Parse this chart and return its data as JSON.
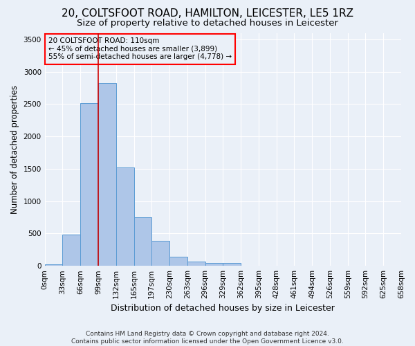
{
  "title": "20, COLTSFOOT ROAD, HAMILTON, LEICESTER, LE5 1RZ",
  "subtitle": "Size of property relative to detached houses in Leicester",
  "xlabel": "Distribution of detached houses by size in Leicester",
  "ylabel": "Number of detached properties",
  "footer_line1": "Contains HM Land Registry data © Crown copyright and database right 2024.",
  "footer_line2": "Contains public sector information licensed under the Open Government Licence v3.0.",
  "bin_labels": [
    "0sqm",
    "33sqm",
    "66sqm",
    "99sqm",
    "132sqm",
    "165sqm",
    "197sqm",
    "230sqm",
    "263sqm",
    "296sqm",
    "329sqm",
    "362sqm",
    "395sqm",
    "428sqm",
    "461sqm",
    "494sqm",
    "526sqm",
    "559sqm",
    "592sqm",
    "625sqm",
    "658sqm"
  ],
  "bar_values": [
    20,
    480,
    2510,
    2820,
    1520,
    750,
    390,
    145,
    65,
    50,
    50,
    0,
    0,
    0,
    0,
    0,
    0,
    0,
    0,
    0,
    0
  ],
  "bar_color": "#aec6e8",
  "bar_edge_color": "#5a9bd4",
  "ylim": [
    0,
    3600
  ],
  "yticks": [
    0,
    500,
    1000,
    1500,
    2000,
    2500,
    3000,
    3500
  ],
  "vline_x": 3.0,
  "vline_color": "#cc0000",
  "annotation_text": "20 COLTSFOOT ROAD: 110sqm\n← 45% of detached houses are smaller (3,899)\n55% of semi-detached houses are larger (4,778) →",
  "bg_color": "#eaf0f8",
  "grid_color": "#d0daea",
  "title_fontsize": 11,
  "subtitle_fontsize": 9.5,
  "xlabel_fontsize": 9,
  "ylabel_fontsize": 8.5,
  "tick_fontsize": 7.5,
  "annotation_fontsize": 7.5,
  "footer_fontsize": 6.5
}
